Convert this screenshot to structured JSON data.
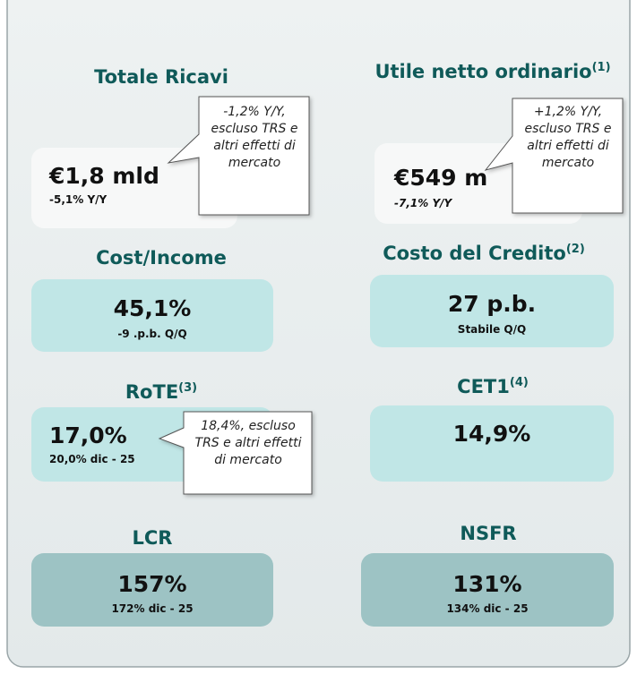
{
  "panels": [
    {
      "heading": "Totale Ricavi",
      "value": "€1,8 mld",
      "detail": "-5,1% Y/Y",
      "callout": "-1,2% Y/Y, escluso TRS e altri effetti di mercato"
    },
    {
      "heading": "Utile netto ordinario",
      "note": "(1)",
      "value": "€549 m",
      "detail": "-7,1% Y/Y",
      "callout": "+1,2% Y/Y, escluso TRS e altri effetti di mercato"
    },
    {
      "heading": "Cost/Income",
      "value": "45,1%",
      "detail": "-9 .p.b. Q/Q"
    },
    {
      "heading": "Costo del Credito",
      "note": "(2)",
      "value": "27 p.b.",
      "detail": "Stabile Q/Q"
    },
    {
      "heading": "RoTE",
      "note": "(3)",
      "value": "17,0%",
      "detail": "20,0% dic - 25",
      "callout": "18,4%, escluso TRS e altri effetti di mercato"
    },
    {
      "heading": "CET1",
      "note": "(4)",
      "value": "14,9%"
    },
    {
      "heading": "LCR",
      "value": "157%",
      "detail": "172% dic - 25"
    },
    {
      "heading": "NSFR",
      "value": "131%",
      "detail": "134% dic - 25"
    }
  ]
}
